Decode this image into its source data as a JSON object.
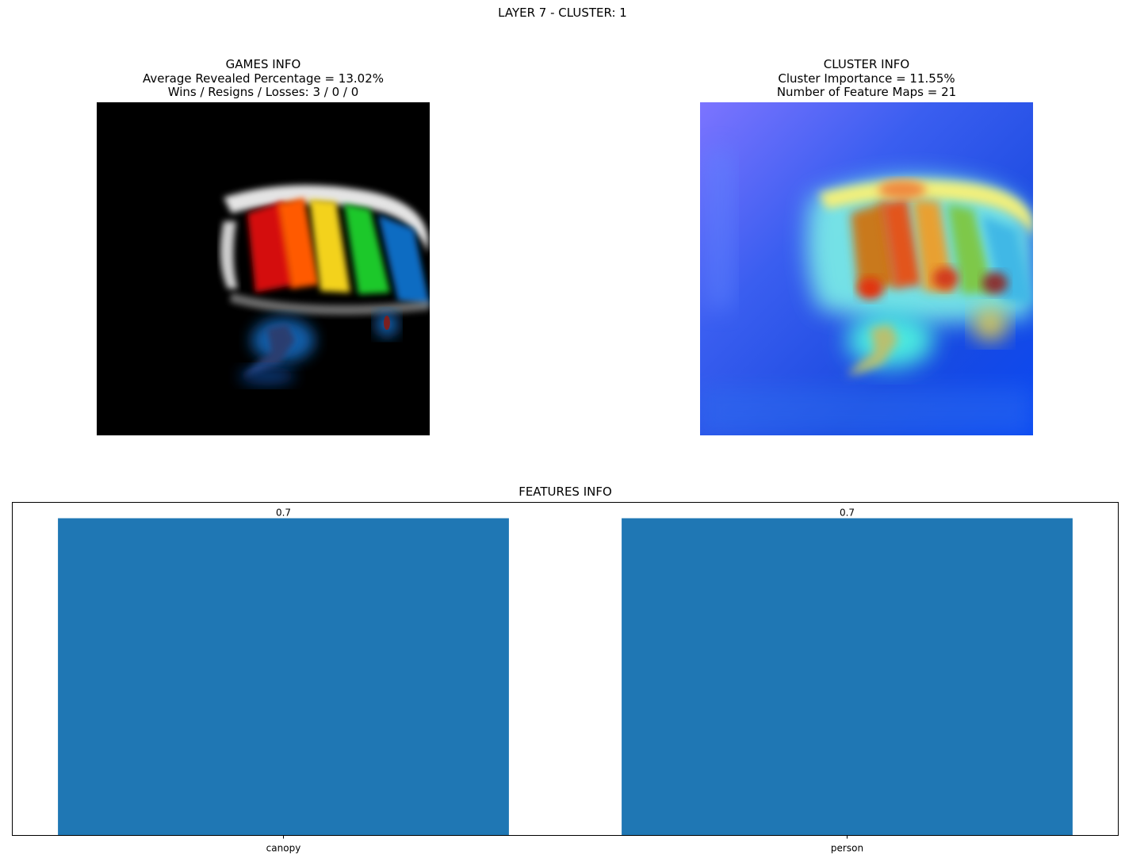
{
  "figure": {
    "title": "LAYER 7 - CLUSTER: 1"
  },
  "games_info": {
    "title": "GAMES INFO",
    "line1": "Average Revealed Percentage = 13.02%",
    "line2": "Wins / Resigns / Losses: 3 / 0 / 0",
    "image_alt": "masked image revealing parachute canopy and skydiver on black background"
  },
  "cluster_info": {
    "title": "CLUSTER INFO",
    "line1": "Cluster Importance = 11.55%",
    "line2": "Number of Feature Maps = 21",
    "image_alt": "heatmap overlay of parachute canopy and skydiver"
  },
  "colors": {
    "bar": "#1f77b4",
    "axis": "#000000"
  },
  "chart_data": {
    "type": "bar",
    "title": "FEATURES INFO",
    "categories": [
      "canopy",
      "person"
    ],
    "values": [
      0.7,
      0.7
    ],
    "value_labels": [
      "0.7",
      "0.7"
    ],
    "xlabel": "",
    "ylabel": "",
    "ylim": [
      0,
      0.735
    ],
    "yticks_visible": false,
    "grid": false
  }
}
